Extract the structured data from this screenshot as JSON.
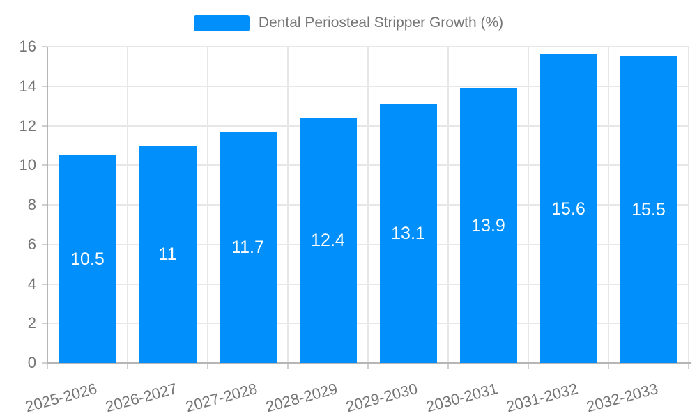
{
  "legend": {
    "label": "Dental Periosteal Stripper Growth (%)"
  },
  "colors": {
    "bar": "#008FFB",
    "axis_label": "#757575",
    "grid_line": "#e7e7e7",
    "axis_line": "#b6b6b6",
    "tick": "#cfcfcf",
    "value_label": "#ffffff"
  },
  "chart_data": {
    "type": "bar",
    "categories": [
      "2025-2026",
      "2026-2027",
      "2027-2028",
      "2028-2029",
      "2029-2030",
      "2030-2031",
      "2031-2032",
      "2032-2033"
    ],
    "series": [
      {
        "name": "Dental Periosteal Stripper Growth (%)",
        "values": [
          10.5,
          11,
          11.7,
          12.4,
          13.1,
          13.9,
          15.6,
          15.5
        ],
        "data_labels": [
          "10.5",
          "11",
          "11.7",
          "12.4",
          "13.1",
          "13.9",
          "15.6",
          "15.5"
        ]
      }
    ],
    "xlabel": "",
    "ylabel": "",
    "ylim": [
      0,
      16
    ],
    "yticks": [
      0,
      2,
      4,
      6,
      8,
      10,
      12,
      14,
      16
    ],
    "grid": true,
    "legend_position": "top",
    "xlabel_rotation_deg": -15
  }
}
